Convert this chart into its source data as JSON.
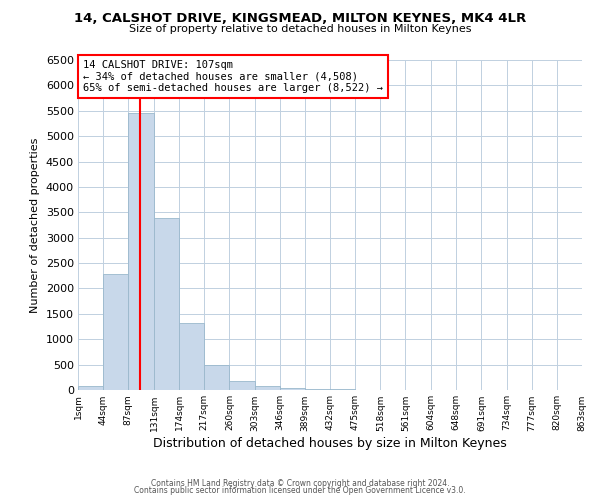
{
  "title": "14, CALSHOT DRIVE, KINGSMEAD, MILTON KEYNES, MK4 4LR",
  "subtitle": "Size of property relative to detached houses in Milton Keynes",
  "xlabel": "Distribution of detached houses by size in Milton Keynes",
  "ylabel": "Number of detached properties",
  "bar_color": "#c8d8ea",
  "bar_edgecolor": "#9ab8cc",
  "grid_color": "#c0d0e0",
  "background_color": "#ffffff",
  "annotation_title": "14 CALSHOT DRIVE: 107sqm",
  "annotation_line1": "← 34% of detached houses are smaller (4,508)",
  "annotation_line2": "65% of semi-detached houses are larger (8,522) →",
  "redline_x": 107,
  "bin_edges": [
    1,
    44,
    87,
    131,
    174,
    217,
    260,
    303,
    346,
    389,
    432,
    475,
    518,
    561,
    604,
    648,
    691,
    734,
    777,
    820,
    863
  ],
  "bin_heights": [
    75,
    2280,
    5450,
    3390,
    1310,
    490,
    180,
    75,
    40,
    20,
    10,
    5,
    3,
    2,
    1,
    1,
    1,
    1,
    1,
    1
  ],
  "ylim": [
    0,
    6500
  ],
  "yticks": [
    0,
    500,
    1000,
    1500,
    2000,
    2500,
    3000,
    3500,
    4000,
    4500,
    5000,
    5500,
    6000,
    6500
  ],
  "footer_line1": "Contains HM Land Registry data © Crown copyright and database right 2024.",
  "footer_line2": "Contains public sector information licensed under the Open Government Licence v3.0."
}
